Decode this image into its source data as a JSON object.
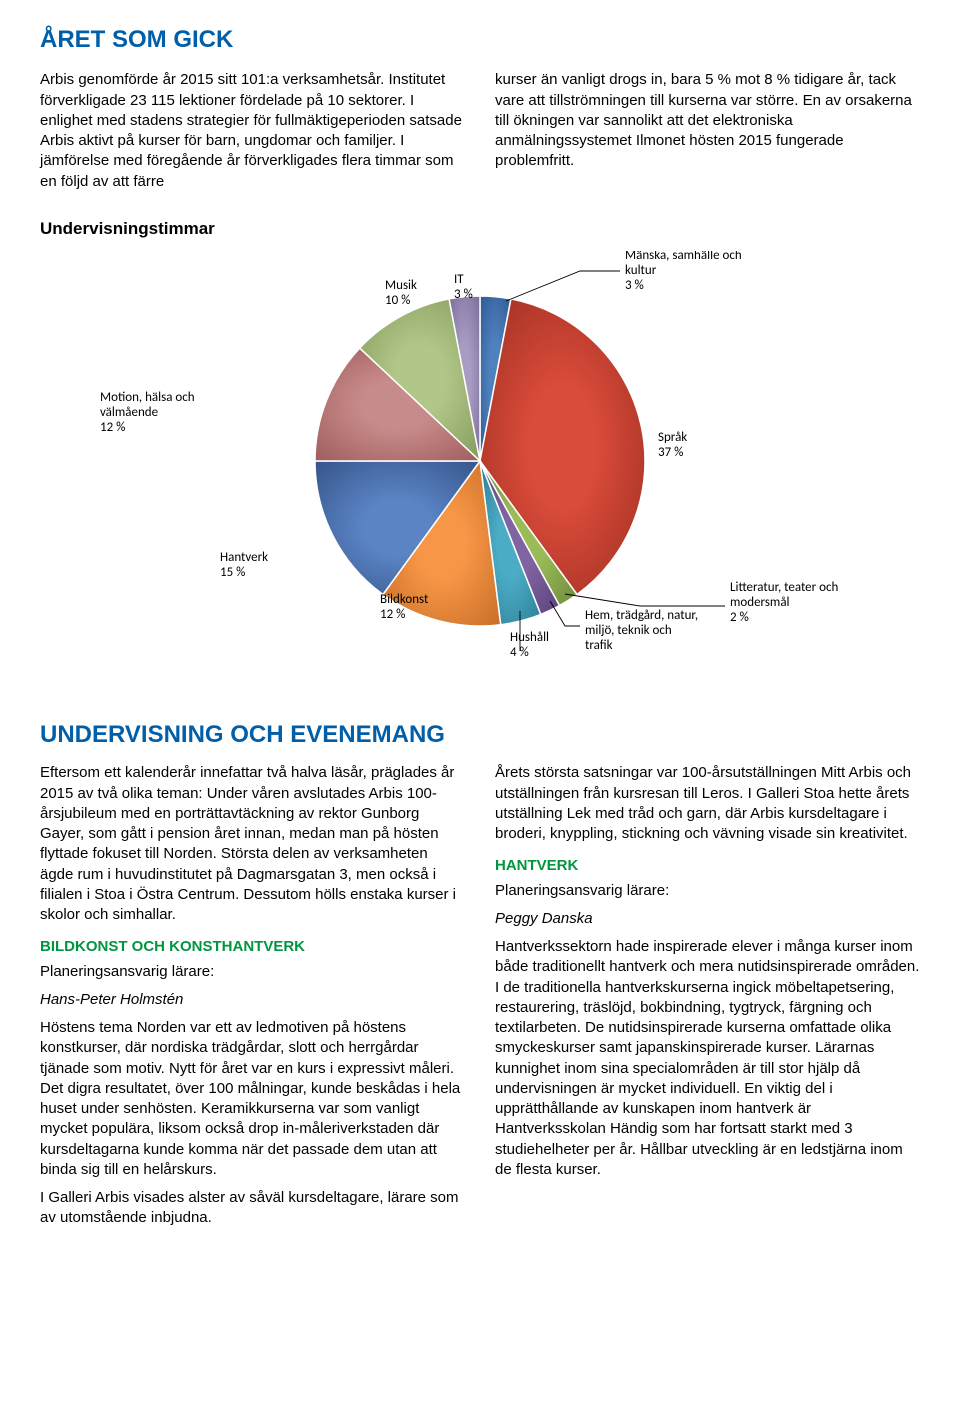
{
  "topSection": {
    "heading": "ÅRET SOM GICK",
    "leftPara": "Arbis genomförde år 2015 sitt 101:a verksamhetsår. Institutet förverkligade 23 115 lektioner fördelade på 10 sektorer. I enlighet med stadens strategier för fullmäktigeperioden satsade Arbis aktivt på kurser för barn, ungdomar och familjer. I jämförelse med föregående år förverkligades flera timmar som en följd av att färre",
    "rightPara": "kurser än vanligt drogs in, bara 5 % mot 8 % tidigare år, tack vare att tillströmningen till kurserna var större. En av orsakerna till ökningen var sannolikt att det elektroniska anmälningssystemet Ilmonet hösten 2015 fungerade problemfritt.",
    "chartTitle": "Undervisningstimmar"
  },
  "chart": {
    "type": "pie",
    "background_color": "#ffffff",
    "label_fontsize": 13,
    "slices": [
      {
        "label": "Mänska, samhälle och kultur",
        "pct": "3 %",
        "color": "#4f81bd",
        "gradEnd": "#2f5a96"
      },
      {
        "label": "Språk",
        "pct": "37 %",
        "color": "#d94b3a",
        "gradEnd": "#9e2e21"
      },
      {
        "label": "Litteratur, teater och modersmål",
        "pct": "2 %",
        "color": "#9bbb59",
        "gradEnd": "#6e8c3b"
      },
      {
        "label": "Hem, trädgård, natur, miljö, teknik och trafik",
        "pct": "",
        "color": "#8064a2",
        "gradEnd": "#5a437b"
      },
      {
        "label": "Hushåll",
        "pct": "4 %",
        "color": "#4bacc6",
        "gradEnd": "#2e7e94"
      },
      {
        "label": "Bildkonst",
        "pct": "12 %",
        "color": "#f79646",
        "gradEnd": "#c86f28"
      },
      {
        "label": "Hantverk",
        "pct": "15 %",
        "color": "#5a84c4",
        "gradEnd": "#36558b"
      },
      {
        "label": "Motion, hälsa och välmående",
        "pct": "12 %",
        "color": "#c88b8b",
        "gradEnd": "#a05e5e"
      },
      {
        "label": "Musik",
        "pct": "10 %",
        "color": "#b1c787",
        "gradEnd": "#869c5f"
      },
      {
        "label": "IT",
        "pct": "3 %",
        "color": "#a89cc2",
        "gradEnd": "#7b6d9a"
      }
    ]
  },
  "bottomSection": {
    "heading": "UNDERVISNING OCH EVENEMANG",
    "leftParas": [
      "Eftersom ett kalenderår innefattar två halva läsår, präglades år 2015 av två olika teman: Under våren avslutades Arbis 100-årsjubileum med en porträttavtäckning av rektor Gunborg Gayer, som gått i pension året innan, medan man på hösten flyttade fokuset till Norden. Största delen av verksamheten ägde rum i huvudinstitutet på Dagmarsgatan 3, men också i filialen i Stoa i Östra Centrum. Dessutom hölls enstaka kurser i skolor och simhallar."
    ],
    "leftSubHeading": "BILDKONST OCH KONSTHANTVERK",
    "leftTeacherLabel": "Planeringsansvarig lärare:",
    "leftTeacherName": "Hans-Peter Holmstén",
    "leftParas2": [
      "Höstens tema Norden var ett av ledmotiven på höstens konstkurser, där nordiska trädgårdar, slott och herrgårdar tjänade som motiv. Nytt för året var en kurs i expressivt måleri. Det digra resultatet, över 100 målningar, kunde beskådas i hela huset under senhösten. Keramikkurserna var som vanligt mycket populära, liksom också drop in-måleriverkstaden där kursdeltagarna kunde komma när det passade dem utan att binda sig till en helårskurs.",
      "I Galleri Arbis visades alster av såväl kursdeltagare, lärare som av utomstående inbjudna."
    ],
    "rightParas": [
      "Årets största satsningar var 100-årsutställningen Mitt Arbis och utställningen från kursresan till Leros. I Galleri Stoa hette årets utställning Lek med tråd och garn, där Arbis kursdeltagare i broderi, knyppling, stickning och vävning visade sin kreativitet."
    ],
    "rightSubHeading": "HANTVERK",
    "rightTeacherLabel": "Planeringsansvarig lärare:",
    "rightTeacherName": "Peggy Danska",
    "rightParas2": [
      "Hantverkssektorn hade inspirerade elever i många kurser inom både traditionellt hantverk och mera nutidsinspirerade områden. I de traditionella hantverkskurserna ingick möbeltapetsering, restaurering, träslöjd, bokbindning, tygtryck, färgning och textilarbeten. De nutidsinspirerade kurserna omfattade olika smyckeskurser samt japanskinspirerade kurser. Lärarnas kunnighet inom sina specialområden är till stor hjälp då undervisningen är mycket individuell. En viktig del i upprätthållande av kunskapen inom hantverk är Hantverksskolan Händig som har fortsatt starkt med 3 studiehelheter per år. Hållbar utveckling är en ledstjärna inom de flesta kurser."
    ]
  }
}
